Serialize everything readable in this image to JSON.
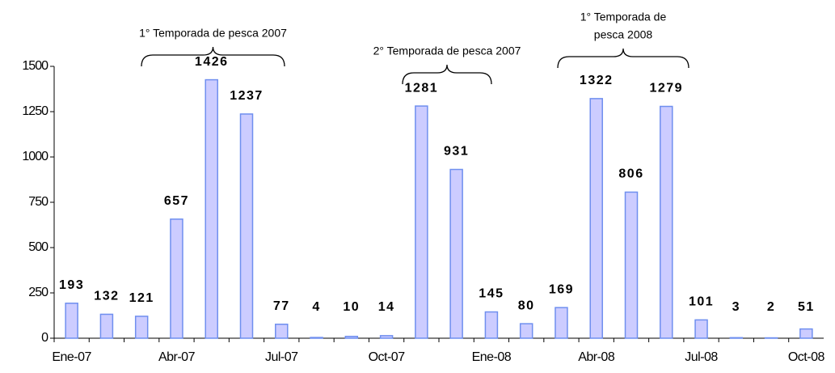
{
  "chart_data": {
    "type": "bar",
    "categories": [
      "Ene-07",
      null,
      null,
      "Abr-07",
      null,
      null,
      "Jul-07",
      null,
      null,
      "Oct-07",
      null,
      null,
      "Ene-08",
      null,
      null,
      "Abr-08",
      null,
      null,
      "Jul-08",
      null,
      null,
      "Oct-08"
    ],
    "values": [
      193,
      132,
      121,
      657,
      1426,
      1237,
      77,
      4,
      10,
      14,
      1281,
      931,
      145,
      80,
      169,
      1322,
      806,
      1279,
      101,
      3,
      2,
      51
    ],
    "color": "#ccccff",
    "edge_color": "#6f8fef",
    "ylim": [
      0,
      1500
    ],
    "yticks": [
      0,
      250,
      500,
      750,
      1000,
      1250,
      1500
    ],
    "annotations": [
      [
        "1° Temporada de pesca 2007"
      ],
      [
        "2° Temporada de pesca 2007"
      ],
      [
        "1° Temporada de",
        "pesca 2008"
      ]
    ]
  }
}
